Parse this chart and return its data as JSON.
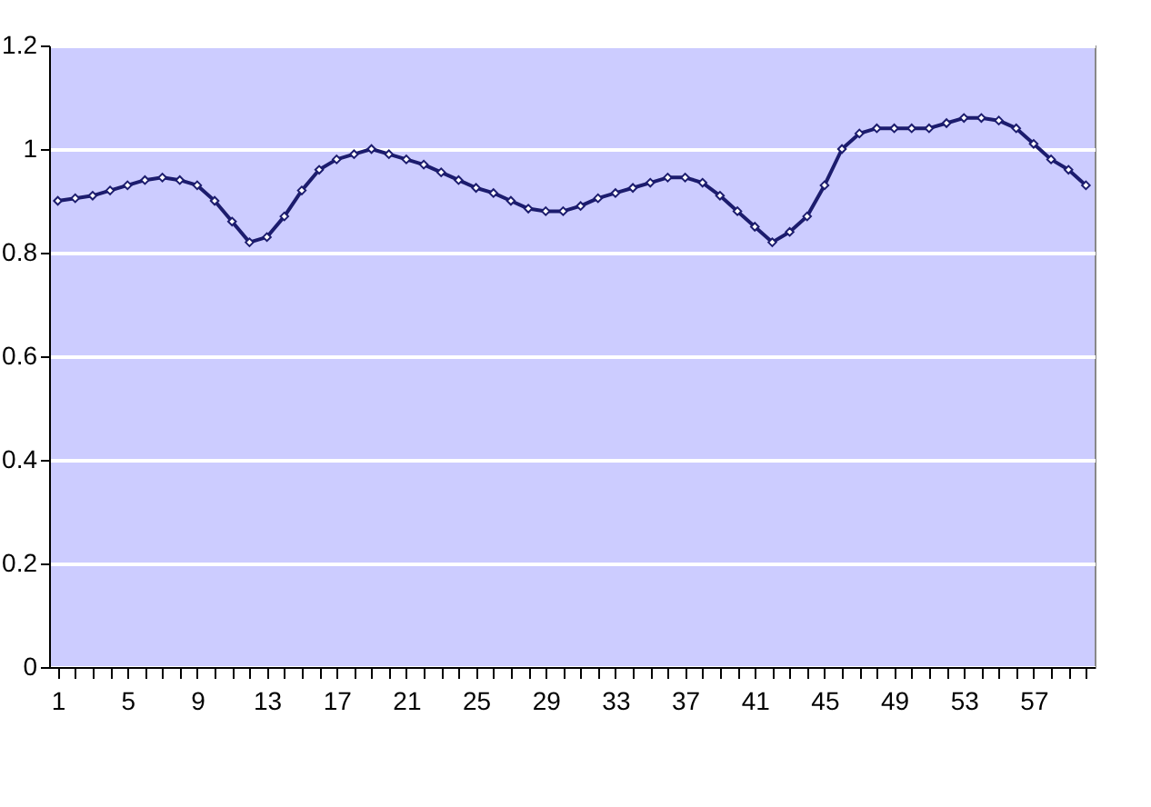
{
  "chart_data": {
    "type": "line",
    "categories": [
      "1",
      null,
      null,
      null,
      "5",
      null,
      null,
      null,
      "9",
      null,
      null,
      null,
      "13",
      null,
      null,
      null,
      "17",
      null,
      null,
      null,
      "21",
      null,
      null,
      null,
      "25",
      null,
      null,
      null,
      "29",
      null,
      null,
      null,
      "33",
      null,
      null,
      null,
      "37",
      null,
      null,
      null,
      "41",
      null,
      null,
      null,
      "45",
      null,
      null,
      null,
      "49",
      null,
      null,
      null,
      "53",
      null,
      null,
      null,
      "57",
      null,
      null,
      null
    ],
    "series": [
      {
        "color": "#1c1c6e",
        "values": [
          0.9,
          0.905,
          0.91,
          0.92,
          0.93,
          0.94,
          0.945,
          0.94,
          0.93,
          0.9,
          0.86,
          0.82,
          0.83,
          0.87,
          0.92,
          0.96,
          0.98,
          0.99,
          1.0,
          0.99,
          0.98,
          0.97,
          0.955,
          0.94,
          0.925,
          0.915,
          0.9,
          0.885,
          0.88,
          0.88,
          0.89,
          0.905,
          0.915,
          0.925,
          0.935,
          0.945,
          0.945,
          0.935,
          0.91,
          0.88,
          0.85,
          0.82,
          0.84,
          0.87,
          0.93,
          1.0,
          1.03,
          1.04,
          1.04,
          1.04,
          1.04,
          1.05,
          1.06,
          1.06,
          1.055,
          1.04,
          1.01,
          0.98,
          0.96,
          0.93
        ]
      }
    ],
    "ylim": [
      0,
      1.2
    ],
    "yticks": [
      0,
      0.2,
      0.4,
      0.6,
      0.8,
      1,
      1.2
    ],
    "grid": "y",
    "marker": "diamond"
  }
}
